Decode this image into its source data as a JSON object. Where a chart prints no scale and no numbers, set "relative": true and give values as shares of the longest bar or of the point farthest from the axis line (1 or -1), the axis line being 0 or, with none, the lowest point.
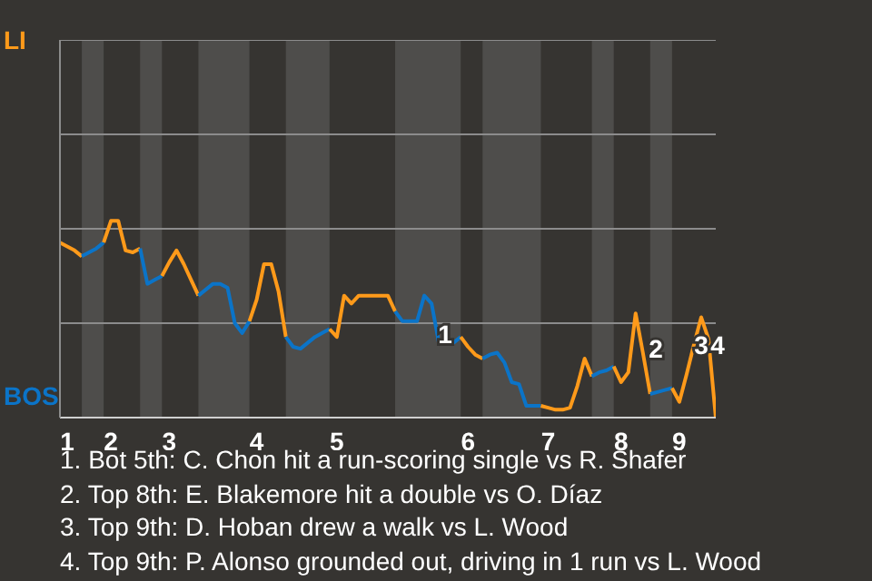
{
  "chart_data": {
    "type": "line",
    "relative": true,
    "categories": [
      null,
      "1",
      null,
      null,
      null,
      null,
      null,
      "2",
      null,
      null,
      null,
      null,
      null,
      null,
      null,
      "3",
      null,
      null,
      null,
      null,
      null,
      null,
      null,
      null,
      null,
      null,
      null,
      "4",
      null,
      null,
      null,
      null,
      null,
      null,
      null,
      null,
      null,
      null,
      "5",
      null,
      null,
      null,
      null,
      null,
      null,
      null,
      null,
      null,
      null,
      null,
      null,
      null,
      null,
      null,
      null,
      null,
      "6",
      null,
      null,
      null,
      null,
      null,
      null,
      null,
      null,
      null,
      null,
      "7",
      null,
      null,
      null,
      null,
      null,
      null,
      null,
      null,
      null,
      "8",
      null,
      null,
      null,
      null,
      null,
      null,
      null,
      "9",
      null,
      null,
      null,
      null,
      null
    ],
    "ref_lines": [
      {
        "axis": "y",
        "value": 0.48,
        "color": "#8c8c8c"
      },
      {
        "axis": "y",
        "value": 0.96,
        "color": "#8c8c8c"
      },
      {
        "axis": "y",
        "value": 1.44,
        "color": "#8c8c8c"
      },
      {
        "axis": "y",
        "value": 1.92,
        "color": "#8c8c8c"
      }
    ],
    "legend": false,
    "marker": "none",
    "line_style": "solid",
    "series": [
      {
        "name": "LI",
        "color": "#ff9a1a",
        "values": [
          0.89,
          0.87,
          0.85,
          0.82,
          null,
          null,
          null,
          null,
          null,
          null,
          null,
          null,
          null,
          null,
          null,
          null,
          null,
          null,
          null,
          null,
          null,
          null,
          null,
          null,
          null,
          null,
          null,
          null,
          null,
          null,
          null,
          null,
          null,
          null,
          null,
          null,
          null,
          null,
          null,
          null,
          null,
          null,
          null,
          null,
          null,
          null,
          null,
          null,
          null,
          null,
          null,
          null,
          null,
          null,
          null,
          null,
          null,
          null,
          null,
          null,
          null,
          null,
          null,
          null,
          null,
          null,
          null,
          null,
          null,
          null,
          null,
          null,
          null,
          null,
          null,
          null,
          null,
          null,
          null,
          null,
          null,
          null,
          null,
          null,
          null,
          null,
          null,
          null,
          null,
          null,
          null
        ]
      },
      {
        "name": "BOS",
        "color": "#0b74c8",
        "values": [
          null,
          null,
          null,
          0.82,
          0.84,
          0.86,
          0.89,
          null,
          null,
          null,
          null,
          null,
          null,
          null,
          null,
          null,
          null,
          null,
          null,
          null,
          null,
          null,
          null,
          null,
          null,
          null,
          null,
          null,
          null,
          null,
          null,
          null,
          null,
          null,
          null,
          null,
          null,
          null,
          null,
          null,
          null,
          null,
          null,
          null,
          null,
          null,
          null,
          null,
          null,
          null,
          null,
          null,
          null,
          null,
          null,
          null,
          null,
          null,
          null,
          null,
          null,
          null,
          null,
          null,
          null,
          null,
          null,
          null,
          null,
          null,
          null,
          null,
          null,
          null,
          null,
          null,
          null,
          null,
          null,
          null,
          null,
          null,
          null,
          null,
          null,
          null,
          null,
          null,
          null,
          null,
          null
        ]
      },
      {
        "color": "#ff9a1a",
        "values": [
          null,
          null,
          null,
          null,
          null,
          null,
          0.89,
          1,
          1,
          0.85,
          0.84,
          0.86,
          null,
          null,
          null,
          null,
          null,
          null,
          null,
          null,
          null,
          null,
          null,
          null,
          null,
          null,
          null,
          null,
          null,
          null,
          null,
          null,
          null,
          null,
          null,
          null,
          null,
          null,
          null,
          null,
          null,
          null,
          null,
          null,
          null,
          null,
          null,
          null,
          null,
          null,
          null,
          null,
          null,
          null,
          null,
          null,
          null,
          null,
          null,
          null,
          null,
          null,
          null,
          null,
          null,
          null,
          null,
          null,
          null,
          null,
          null,
          null,
          null,
          null,
          null,
          null,
          null,
          null,
          null,
          null,
          null,
          null,
          null,
          null,
          null,
          null,
          null,
          null,
          null,
          null,
          null
        ]
      },
      {
        "color": "#0b74c8",
        "values": [
          null,
          null,
          null,
          null,
          null,
          null,
          null,
          null,
          null,
          null,
          null,
          0.86,
          0.68,
          0.7,
          0.72,
          null,
          null,
          null,
          null,
          null,
          null,
          null,
          null,
          null,
          null,
          null,
          null,
          null,
          null,
          null,
          null,
          null,
          null,
          null,
          null,
          null,
          null,
          null,
          null,
          null,
          null,
          null,
          null,
          null,
          null,
          null,
          null,
          null,
          null,
          null,
          null,
          null,
          null,
          null,
          null,
          null,
          null,
          null,
          null,
          null,
          null,
          null,
          null,
          null,
          null,
          null,
          null,
          null,
          null,
          null,
          null,
          null,
          null,
          null,
          null,
          null,
          null,
          null,
          null,
          null,
          null,
          null,
          null,
          null,
          null,
          null,
          null,
          null,
          null,
          null,
          null
        ]
      },
      {
        "color": "#ff9a1a",
        "values": [
          null,
          null,
          null,
          null,
          null,
          null,
          null,
          null,
          null,
          null,
          null,
          null,
          null,
          null,
          0.72,
          0.79,
          0.85,
          0.78,
          0.7,
          0.62,
          null,
          null,
          null,
          null,
          null,
          null,
          null,
          null,
          null,
          null,
          null,
          null,
          null,
          null,
          null,
          null,
          null,
          null,
          null,
          null,
          null,
          null,
          null,
          null,
          null,
          null,
          null,
          null,
          null,
          null,
          null,
          null,
          null,
          null,
          null,
          null,
          null,
          null,
          null,
          null,
          null,
          null,
          null,
          null,
          null,
          null,
          null,
          null,
          null,
          null,
          null,
          null,
          null,
          null,
          null,
          null,
          null,
          null,
          null,
          null,
          null,
          null,
          null,
          null,
          null,
          null,
          null,
          null,
          null,
          null,
          null
        ]
      },
      {
        "color": "#0b74c8",
        "values": [
          null,
          null,
          null,
          null,
          null,
          null,
          null,
          null,
          null,
          null,
          null,
          null,
          null,
          null,
          null,
          null,
          null,
          null,
          null,
          0.62,
          0.65,
          0.68,
          0.68,
          0.66,
          0.48,
          0.43,
          0.49,
          null,
          null,
          null,
          null,
          null,
          null,
          null,
          null,
          null,
          null,
          null,
          null,
          null,
          null,
          null,
          null,
          null,
          null,
          null,
          null,
          null,
          null,
          null,
          null,
          null,
          null,
          null,
          null,
          null,
          null,
          null,
          null,
          null,
          null,
          null,
          null,
          null,
          null,
          null,
          null,
          null,
          null,
          null,
          null,
          null,
          null,
          null,
          null,
          null,
          null,
          null,
          null,
          null,
          null,
          null,
          null,
          null,
          null,
          null,
          null,
          null,
          null,
          null,
          null
        ]
      },
      {
        "color": "#ff9a1a",
        "values": [
          null,
          null,
          null,
          null,
          null,
          null,
          null,
          null,
          null,
          null,
          null,
          null,
          null,
          null,
          null,
          null,
          null,
          null,
          null,
          null,
          null,
          null,
          null,
          null,
          null,
          null,
          0.49,
          0.6,
          0.78,
          0.78,
          0.64,
          0.41,
          null,
          null,
          null,
          null,
          null,
          null,
          null,
          null,
          null,
          null,
          null,
          null,
          null,
          null,
          null,
          null,
          null,
          null,
          null,
          null,
          null,
          null,
          null,
          null,
          null,
          null,
          null,
          null,
          null,
          null,
          null,
          null,
          null,
          null,
          null,
          null,
          null,
          null,
          null,
          null,
          null,
          null,
          null,
          null,
          null,
          null,
          null,
          null,
          null,
          null,
          null,
          null,
          null,
          null,
          null,
          null,
          null,
          null,
          null
        ]
      },
      {
        "color": "#0b74c8",
        "values": [
          null,
          null,
          null,
          null,
          null,
          null,
          null,
          null,
          null,
          null,
          null,
          null,
          null,
          null,
          null,
          null,
          null,
          null,
          null,
          null,
          null,
          null,
          null,
          null,
          null,
          null,
          null,
          null,
          null,
          null,
          null,
          0.41,
          0.36,
          0.35,
          0.38,
          0.41,
          0.43,
          0.45,
          null,
          null,
          null,
          null,
          null,
          null,
          null,
          null,
          null,
          null,
          null,
          null,
          null,
          null,
          null,
          null,
          null,
          null,
          null,
          null,
          null,
          null,
          null,
          null,
          null,
          null,
          null,
          null,
          null,
          null,
          null,
          null,
          null,
          null,
          null,
          null,
          null,
          null,
          null,
          null,
          null,
          null,
          null,
          null,
          null,
          null,
          null,
          null,
          null,
          null,
          null,
          null,
          null
        ]
      },
      {
        "color": "#ff9a1a",
        "values": [
          null,
          null,
          null,
          null,
          null,
          null,
          null,
          null,
          null,
          null,
          null,
          null,
          null,
          null,
          null,
          null,
          null,
          null,
          null,
          null,
          null,
          null,
          null,
          null,
          null,
          null,
          null,
          null,
          null,
          null,
          null,
          null,
          null,
          null,
          null,
          null,
          null,
          0.45,
          0.41,
          0.62,
          0.58,
          0.62,
          0.62,
          0.62,
          0.62,
          0.62,
          0.54,
          null,
          null,
          null,
          null,
          null,
          null,
          null,
          null,
          null,
          null,
          null,
          null,
          null,
          null,
          null,
          null,
          null,
          null,
          null,
          null,
          null,
          null,
          null,
          null,
          null,
          null,
          null,
          null,
          null,
          null,
          null,
          null,
          null,
          null,
          null,
          null,
          null,
          null,
          null,
          null,
          null,
          null,
          null,
          null
        ]
      },
      {
        "color": "#0b74c8",
        "values": [
          null,
          null,
          null,
          null,
          null,
          null,
          null,
          null,
          null,
          null,
          null,
          null,
          null,
          null,
          null,
          null,
          null,
          null,
          null,
          null,
          null,
          null,
          null,
          null,
          null,
          null,
          null,
          null,
          null,
          null,
          null,
          null,
          null,
          null,
          null,
          null,
          null,
          null,
          null,
          null,
          null,
          null,
          null,
          null,
          null,
          null,
          0.54,
          0.49,
          0.49,
          0.49,
          0.62,
          0.58,
          0.38,
          0.38,
          0.38,
          0.41,
          null,
          null,
          null,
          null,
          null,
          null,
          null,
          null,
          null,
          null,
          null,
          null,
          null,
          null,
          null,
          null,
          null,
          null,
          null,
          null,
          null,
          null,
          null,
          null,
          null,
          null,
          null,
          null,
          null,
          null,
          null,
          null,
          null,
          null,
          null
        ]
      },
      {
        "color": "#ff9a1a",
        "values": [
          null,
          null,
          null,
          null,
          null,
          null,
          null,
          null,
          null,
          null,
          null,
          null,
          null,
          null,
          null,
          null,
          null,
          null,
          null,
          null,
          null,
          null,
          null,
          null,
          null,
          null,
          null,
          null,
          null,
          null,
          null,
          null,
          null,
          null,
          null,
          null,
          null,
          null,
          null,
          null,
          null,
          null,
          null,
          null,
          null,
          null,
          null,
          null,
          null,
          null,
          null,
          null,
          null,
          null,
          null,
          0.41,
          0.36,
          0.32,
          0.3,
          null,
          null,
          null,
          null,
          null,
          null,
          null,
          null,
          null,
          null,
          null,
          null,
          null,
          null,
          null,
          null,
          null,
          null,
          null,
          null,
          null,
          null,
          null,
          null,
          null,
          null,
          null,
          null,
          null,
          null,
          null,
          null
        ]
      },
      {
        "color": "#0b74c8",
        "values": [
          null,
          null,
          null,
          null,
          null,
          null,
          null,
          null,
          null,
          null,
          null,
          null,
          null,
          null,
          null,
          null,
          null,
          null,
          null,
          null,
          null,
          null,
          null,
          null,
          null,
          null,
          null,
          null,
          null,
          null,
          null,
          null,
          null,
          null,
          null,
          null,
          null,
          null,
          null,
          null,
          null,
          null,
          null,
          null,
          null,
          null,
          null,
          null,
          null,
          null,
          null,
          null,
          null,
          null,
          null,
          null,
          null,
          null,
          0.3,
          0.32,
          0.33,
          0.28,
          0.18,
          0.17,
          0.06,
          0.06,
          0.06,
          null,
          null,
          null,
          null,
          null,
          null,
          null,
          null,
          null,
          null,
          null,
          null,
          null,
          null,
          null,
          null,
          null,
          null,
          null,
          null,
          null,
          null,
          null,
          null
        ]
      },
      {
        "color": "#ff9a1a",
        "values": [
          null,
          null,
          null,
          null,
          null,
          null,
          null,
          null,
          null,
          null,
          null,
          null,
          null,
          null,
          null,
          null,
          null,
          null,
          null,
          null,
          null,
          null,
          null,
          null,
          null,
          null,
          null,
          null,
          null,
          null,
          null,
          null,
          null,
          null,
          null,
          null,
          null,
          null,
          null,
          null,
          null,
          null,
          null,
          null,
          null,
          null,
          null,
          null,
          null,
          null,
          null,
          null,
          null,
          null,
          null,
          null,
          null,
          null,
          null,
          null,
          null,
          null,
          null,
          null,
          null,
          null,
          0.06,
          0.05,
          0.04,
          0.04,
          0.05,
          0.16,
          0.3,
          0.21,
          null,
          null,
          null,
          null,
          null,
          null,
          null,
          null,
          null,
          null,
          null,
          null,
          null,
          null,
          null,
          null,
          null
        ]
      },
      {
        "color": "#0b74c8",
        "values": [
          null,
          null,
          null,
          null,
          null,
          null,
          null,
          null,
          null,
          null,
          null,
          null,
          null,
          null,
          null,
          null,
          null,
          null,
          null,
          null,
          null,
          null,
          null,
          null,
          null,
          null,
          null,
          null,
          null,
          null,
          null,
          null,
          null,
          null,
          null,
          null,
          null,
          null,
          null,
          null,
          null,
          null,
          null,
          null,
          null,
          null,
          null,
          null,
          null,
          null,
          null,
          null,
          null,
          null,
          null,
          null,
          null,
          null,
          null,
          null,
          null,
          null,
          null,
          null,
          null,
          null,
          null,
          null,
          null,
          null,
          null,
          null,
          null,
          0.21,
          0.23,
          0.24,
          0.26,
          null,
          null,
          null,
          null,
          null,
          null,
          null,
          null,
          null,
          null,
          null,
          null,
          null,
          null
        ]
      },
      {
        "color": "#ff9a1a",
        "values": [
          null,
          null,
          null,
          null,
          null,
          null,
          null,
          null,
          null,
          null,
          null,
          null,
          null,
          null,
          null,
          null,
          null,
          null,
          null,
          null,
          null,
          null,
          null,
          null,
          null,
          null,
          null,
          null,
          null,
          null,
          null,
          null,
          null,
          null,
          null,
          null,
          null,
          null,
          null,
          null,
          null,
          null,
          null,
          null,
          null,
          null,
          null,
          null,
          null,
          null,
          null,
          null,
          null,
          null,
          null,
          null,
          null,
          null,
          null,
          null,
          null,
          null,
          null,
          null,
          null,
          null,
          null,
          null,
          null,
          null,
          null,
          null,
          null,
          null,
          null,
          null,
          0.26,
          0.18,
          0.23,
          0.53,
          0.33,
          0.12,
          null,
          null,
          null,
          null,
          null,
          null,
          null,
          null,
          null
        ]
      },
      {
        "color": "#0b74c8",
        "values": [
          null,
          null,
          null,
          null,
          null,
          null,
          null,
          null,
          null,
          null,
          null,
          null,
          null,
          null,
          null,
          null,
          null,
          null,
          null,
          null,
          null,
          null,
          null,
          null,
          null,
          null,
          null,
          null,
          null,
          null,
          null,
          null,
          null,
          null,
          null,
          null,
          null,
          null,
          null,
          null,
          null,
          null,
          null,
          null,
          null,
          null,
          null,
          null,
          null,
          null,
          null,
          null,
          null,
          null,
          null,
          null,
          null,
          null,
          null,
          null,
          null,
          null,
          null,
          null,
          null,
          null,
          null,
          null,
          null,
          null,
          null,
          null,
          null,
          null,
          null,
          null,
          null,
          null,
          null,
          null,
          null,
          0.12,
          0.13,
          0.14,
          0.15,
          null,
          null,
          null,
          null,
          null,
          null
        ]
      },
      {
        "color": "#ff9a1a",
        "values": [
          null,
          null,
          null,
          null,
          null,
          null,
          null,
          null,
          null,
          null,
          null,
          null,
          null,
          null,
          null,
          null,
          null,
          null,
          null,
          null,
          null,
          null,
          null,
          null,
          null,
          null,
          null,
          null,
          null,
          null,
          null,
          null,
          null,
          null,
          null,
          null,
          null,
          null,
          null,
          null,
          null,
          null,
          null,
          null,
          null,
          null,
          null,
          null,
          null,
          null,
          null,
          null,
          null,
          null,
          null,
          null,
          null,
          null,
          null,
          null,
          null,
          null,
          null,
          null,
          null,
          null,
          null,
          null,
          null,
          null,
          null,
          null,
          null,
          null,
          null,
          null,
          null,
          null,
          null,
          null,
          null,
          null,
          null,
          null,
          0.15,
          0.08,
          0.22,
          0.37,
          0.51,
          0.4,
          0
        ]
      }
    ],
    "annotations": [
      "1",
      "2",
      "3",
      "4",
      "1. Bot 5th: C. Chon hit a run-scoring single vs R. Shafer",
      "2. Top 8th: E. Blakemore hit a double vs O. Díaz",
      "3. Top 9th: D. Hoban drew a walk vs L. Wood",
      "4. Top 9th: P. Alonso grounded out, driving in 1 run vs L. Wood"
    ]
  }
}
